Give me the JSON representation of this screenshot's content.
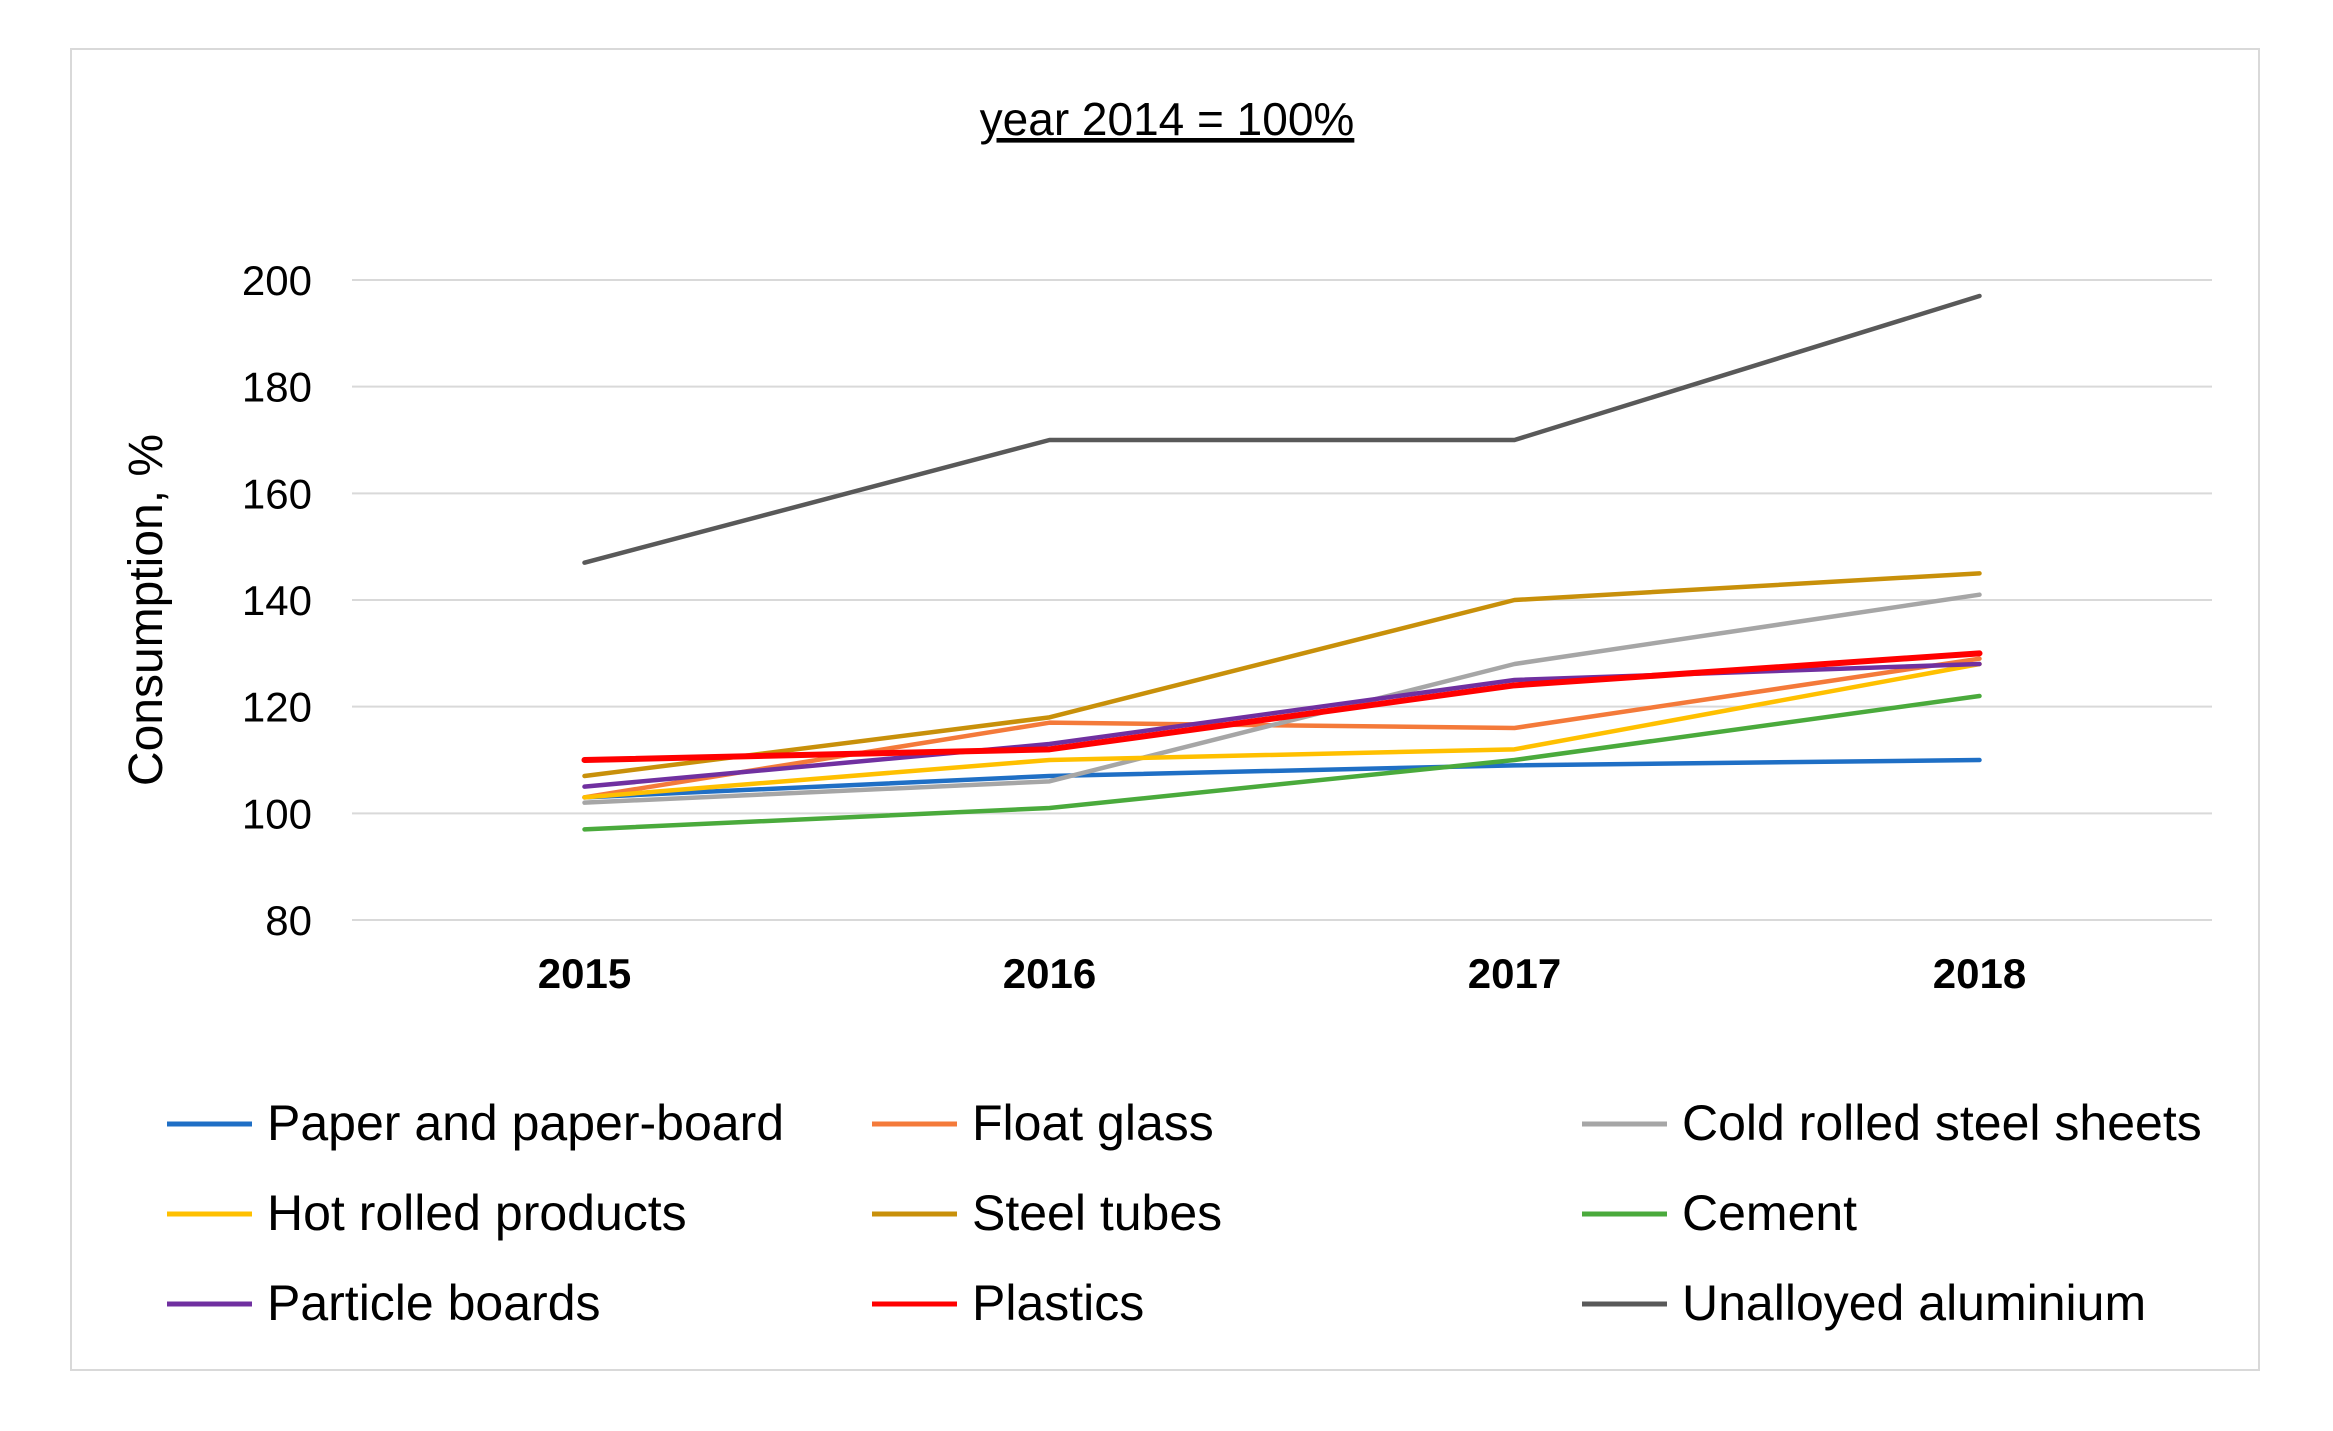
{
  "chart_data": {
    "type": "line",
    "title": "year 2014 = 100%",
    "xlabel": "",
    "ylabel": "Consumption, %",
    "categories": [
      "2015",
      "2016",
      "2017",
      "2018"
    ],
    "ylim": [
      80,
      200
    ],
    "yticks": [
      80,
      100,
      120,
      140,
      160,
      180,
      200
    ],
    "grid": true,
    "legend_position": "bottom",
    "series": [
      {
        "name": "Paper and paper-board",
        "color": "#1f6fc5",
        "values": [
          103,
          107,
          109,
          110
        ]
      },
      {
        "name": "Float glass",
        "color": "#f47a3a",
        "values": [
          103,
          117,
          116,
          129
        ]
      },
      {
        "name": "Cold rolled steel sheets",
        "color": "#a6a6a6",
        "values": [
          102,
          106,
          128,
          141
        ]
      },
      {
        "name": "Hot rolled products",
        "color": "#ffc000",
        "values": [
          103,
          110,
          112,
          128
        ]
      },
      {
        "name": "Steel tubes",
        "color": "#c8900a",
        "values": [
          107,
          118,
          140,
          145
        ]
      },
      {
        "name": "Cement",
        "color": "#4aaa3c",
        "values": [
          97,
          101,
          110,
          122
        ]
      },
      {
        "name": "Particle boards",
        "color": "#7030a0",
        "values": [
          105,
          113,
          125,
          128
        ]
      },
      {
        "name": "Plastics",
        "color": "#ff0000",
        "values": [
          110,
          112,
          124,
          130
        ]
      },
      {
        "name": "Unalloyed aluminium",
        "color": "#595959",
        "values": [
          147,
          170,
          170,
          197
        ]
      }
    ]
  }
}
